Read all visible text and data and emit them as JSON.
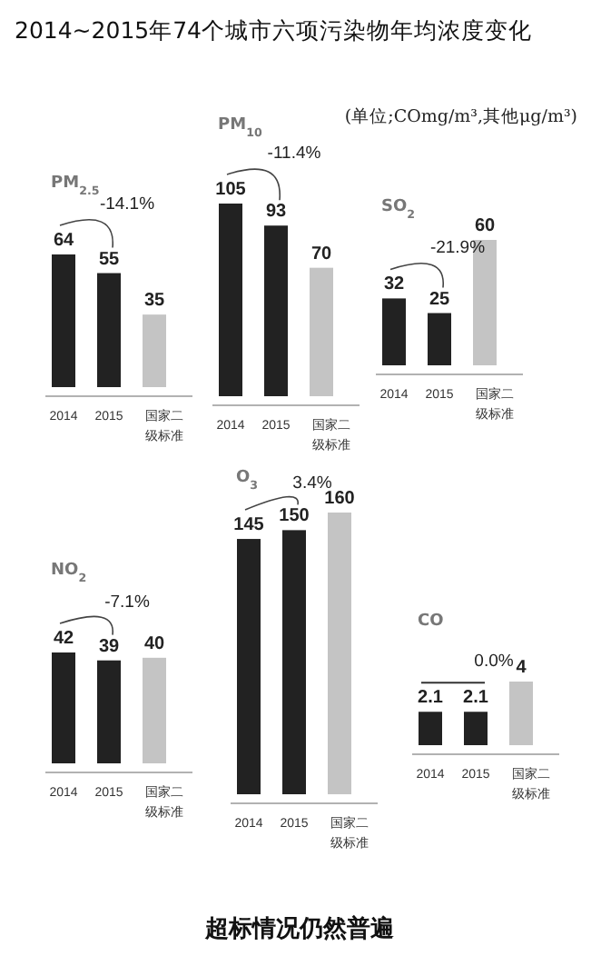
{
  "chart_data": [
    {
      "type": "other",
      "title": "2014~2015年74个城市六项污染物年均浓度变化",
      "subtitle": "(单位;COmg/m³,其他μg/m³)",
      "annotations": [
        "超标情况仍然普遍"
      ]
    },
    {
      "type": "bar",
      "title": "PM$_{2.5}$",
      "categories": [
        "2014",
        "2015",
        "国家二级标准"
      ],
      "values": [
        64,
        55,
        35
      ],
      "colors": [
        "#222222",
        "#222222",
        "#c4c4c4"
      ],
      "data_labels": true,
      "annotations": [
        "-14.1%"
      ]
    },
    {
      "type": "bar",
      "title": "PM$_{10}$",
      "categories": [
        "2014",
        "2015",
        "国家二级标准"
      ],
      "values": [
        105,
        93,
        70
      ],
      "colors": [
        "#222222",
        "#222222",
        "#c4c4c4"
      ],
      "data_labels": true,
      "annotations": [
        "-11.4%"
      ]
    },
    {
      "type": "bar",
      "title": "SO$_{2}$",
      "categories": [
        "2014",
        "2015",
        "国家二级标准"
      ],
      "values": [
        32,
        25,
        60
      ],
      "colors": [
        "#222222",
        "#222222",
        "#c4c4c4"
      ],
      "data_labels": true,
      "annotations": [
        "-21.9%"
      ]
    },
    {
      "type": "bar",
      "title": "NO$_{2}$",
      "categories": [
        "2014",
        "2015",
        "国家二级标准"
      ],
      "values": [
        42,
        39,
        40
      ],
      "colors": [
        "#222222",
        "#222222",
        "#c4c4c4"
      ],
      "data_labels": true,
      "annotations": [
        "-7.1%"
      ]
    },
    {
      "type": "bar",
      "title": "O$_{3}$",
      "categories": [
        "2014",
        "2015",
        "国家二级标准"
      ],
      "values": [
        145,
        150,
        160
      ],
      "colors": [
        "#222222",
        "#222222",
        "#c4c4c4"
      ],
      "data_labels": true,
      "annotations": [
        "3.4%"
      ]
    },
    {
      "type": "bar",
      "title": "CO",
      "categories": [
        "2014",
        "2015",
        "国家二级标准"
      ],
      "values": [
        2.1,
        2.1,
        4
      ],
      "colors": [
        "#222222",
        "#222222",
        "#c4c4c4"
      ],
      "data_labels": true,
      "annotations": [
        "0.0%"
      ]
    }
  ]
}
